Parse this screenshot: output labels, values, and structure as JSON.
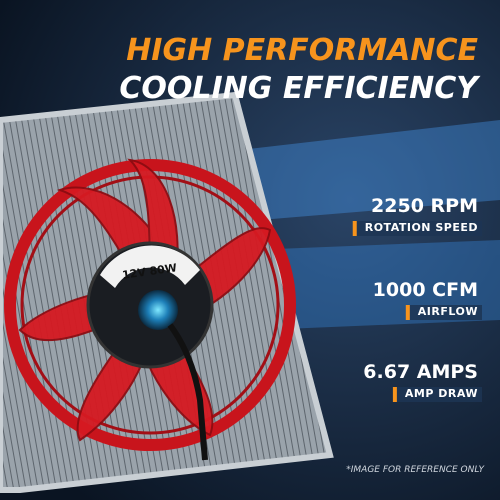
{
  "header": {
    "title_line1": "HIGH PERFORMANCE",
    "title_line2": "COOLING EFFICIENCY"
  },
  "fan_label": "12V 80W",
  "specs": [
    {
      "value": "2250 RPM",
      "label": "ROTATION SPEED"
    },
    {
      "value": "1000 CFM",
      "label": "AIRFLOW"
    },
    {
      "value": "6.67 AMPS",
      "label": "AMP DRAW"
    }
  ],
  "footnote": "*IMAGE FOR REFERENCE ONLY"
}
